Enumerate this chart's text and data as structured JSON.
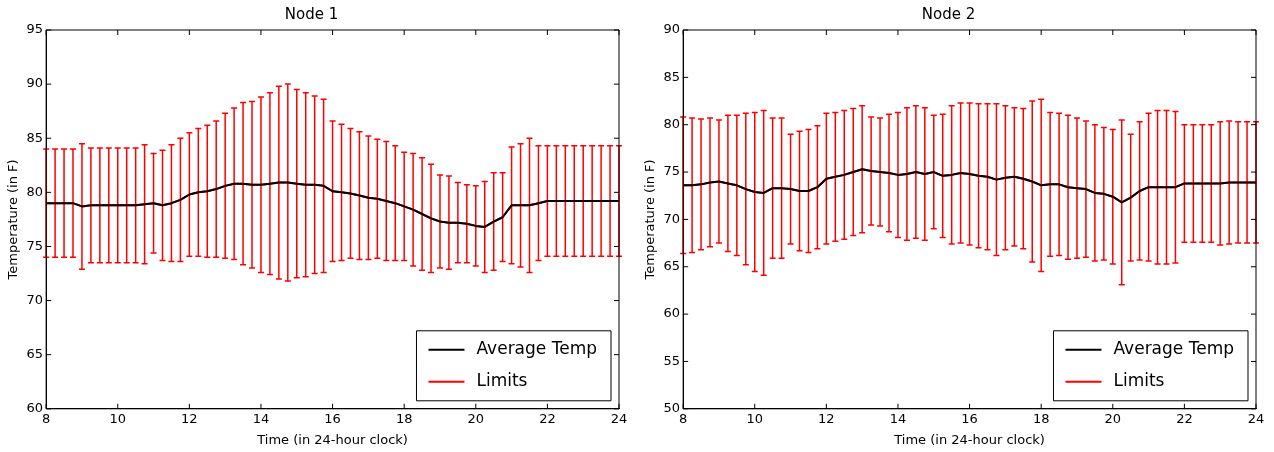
{
  "chart_data": [
    {
      "type": "line",
      "title": "Node 1",
      "xlabel": "Time (in 24-hour clock)",
      "ylabel": "Temperature (in F)",
      "xlim": [
        8,
        24
      ],
      "ylim": [
        60,
        95
      ],
      "xticks": [
        8,
        10,
        12,
        14,
        16,
        18,
        20,
        22,
        24
      ],
      "yticks": [
        60,
        65,
        70,
        75,
        80,
        85,
        90,
        95
      ],
      "legend": "bottom right",
      "x": [
        8,
        8.25,
        8.5,
        8.75,
        9,
        9.25,
        9.5,
        9.75,
        10,
        10.25,
        10.5,
        10.75,
        11,
        11.25,
        11.5,
        11.75,
        12,
        12.25,
        12.5,
        12.75,
        13,
        13.25,
        13.5,
        13.75,
        14,
        14.25,
        14.5,
        14.75,
        15,
        15.25,
        15.5,
        15.75,
        16,
        16.25,
        16.5,
        16.75,
        17,
        17.25,
        17.5,
        17.75,
        18,
        18.25,
        18.5,
        18.75,
        19,
        19.25,
        19.5,
        19.75,
        20,
        20.25,
        20.5,
        20.75,
        21,
        21.25,
        21.5,
        21.75,
        22,
        22.25,
        22.5,
        22.75,
        23,
        23.25,
        23.5,
        23.75,
        24
      ],
      "series": [
        {
          "name": "Average Temp",
          "color": "#000000",
          "values": [
            79,
            79,
            79,
            79,
            78.7,
            78.8,
            78.8,
            78.8,
            78.8,
            78.8,
            78.8,
            78.9,
            79,
            78.8,
            79,
            79.3,
            79.8,
            80,
            80.1,
            80.3,
            80.6,
            80.8,
            80.8,
            80.7,
            80.7,
            80.8,
            80.9,
            80.9,
            80.8,
            80.7,
            80.7,
            80.6,
            80.1,
            80,
            79.9,
            79.7,
            79.5,
            79.4,
            79.2,
            79,
            78.7,
            78.4,
            78,
            77.6,
            77.3,
            77.2,
            77.2,
            77.1,
            76.9,
            76.8,
            77.3,
            77.7,
            78.8,
            78.8,
            78.8,
            79,
            79.2,
            79.2,
            79.2,
            79.2,
            79.2,
            79.2,
            79.2,
            79.2,
            79.2
          ]
        },
        {
          "name": "Limits",
          "color": "#ff0000",
          "values": [
            79,
            79,
            79,
            79,
            78.7,
            78.8,
            78.8,
            78.8,
            78.8,
            78.8,
            78.8,
            78.9,
            79,
            78.8,
            79,
            79.3,
            79.8,
            80,
            80.1,
            80.3,
            80.6,
            80.8,
            80.8,
            80.7,
            80.7,
            80.8,
            80.9,
            80.9,
            80.8,
            80.7,
            80.7,
            80.6,
            80.1,
            80,
            79.9,
            79.7,
            79.5,
            79.4,
            79.2,
            79,
            78.7,
            78.4,
            78,
            77.6,
            77.3,
            77.2,
            77.2,
            77.1,
            76.9,
            76.8,
            77.3,
            77.7,
            78.8,
            78.8,
            78.8,
            79,
            79.2,
            79.2,
            79.2,
            79.2,
            79.2,
            79.2,
            79.2,
            79.2,
            79.2
          ],
          "errors": [
            5,
            5,
            5,
            5,
            5.8,
            5.3,
            5.3,
            5.3,
            5.3,
            5.3,
            5.3,
            5.5,
            4.6,
            5.1,
            5.4,
            5.7,
            5.7,
            5.9,
            6.1,
            6.3,
            6.7,
            7,
            7.5,
            7.7,
            8.1,
            8.4,
            8.9,
            9.1,
            8.7,
            8.5,
            8.2,
            8,
            6.5,
            6.3,
            6,
            5.9,
            5.7,
            5.5,
            5.5,
            5.3,
            5,
            5.2,
            5.2,
            5,
            4.3,
            4.3,
            3.7,
            3.6,
            3.7,
            4.2,
            4.5,
            4.1,
            5.4,
            5.7,
            6.2,
            5.3,
            5.1,
            5.1,
            5.1,
            5.1,
            5.1,
            5.1,
            5.1,
            5.1,
            5.1
          ]
        }
      ]
    },
    {
      "type": "line",
      "title": "Node 2",
      "xlabel": "Time (in 24-hour clock)",
      "ylabel": "Temperature (in F)",
      "xlim": [
        8,
        24
      ],
      "ylim": [
        50,
        90
      ],
      "xticks": [
        8,
        10,
        12,
        14,
        16,
        18,
        20,
        22,
        24
      ],
      "yticks": [
        50,
        55,
        60,
        65,
        70,
        75,
        80,
        85,
        90
      ],
      "legend": "bottom right",
      "x": [
        8,
        8.25,
        8.5,
        8.75,
        9,
        9.25,
        9.5,
        9.75,
        10,
        10.25,
        10.5,
        10.75,
        11,
        11.25,
        11.5,
        11.75,
        12,
        12.25,
        12.5,
        12.75,
        13,
        13.25,
        13.5,
        13.75,
        14,
        14.25,
        14.5,
        14.75,
        15,
        15.25,
        15.5,
        15.75,
        16,
        16.25,
        16.5,
        16.75,
        17,
        17.25,
        17.5,
        17.75,
        18,
        18.25,
        18.5,
        18.75,
        19,
        19.25,
        19.5,
        19.75,
        20,
        20.25,
        20.5,
        20.75,
        21,
        21.25,
        21.5,
        21.75,
        22,
        22.25,
        22.5,
        22.75,
        23,
        23.25,
        23.5,
        23.75,
        24
      ],
      "series": [
        {
          "name": "Average Temp",
          "color": "#000000",
          "values": [
            73.6,
            73.6,
            73.7,
            73.9,
            74,
            73.8,
            73.6,
            73.2,
            72.9,
            72.8,
            73.3,
            73.3,
            73.2,
            73,
            73,
            73.4,
            74.3,
            74.5,
            74.7,
            75,
            75.3,
            75.1,
            75,
            74.9,
            74.7,
            74.8,
            75,
            74.8,
            75,
            74.6,
            74.7,
            74.9,
            74.8,
            74.6,
            74.5,
            74.2,
            74.4,
            74.5,
            74.3,
            74,
            73.6,
            73.7,
            73.7,
            73.4,
            73.3,
            73.2,
            72.8,
            72.7,
            72.4,
            71.8,
            72.3,
            73,
            73.4,
            73.4,
            73.4,
            73.4,
            73.8,
            73.8,
            73.8,
            73.8,
            73.8,
            73.9,
            73.9,
            73.9,
            73.9
          ]
        },
        {
          "name": "Limits",
          "color": "#ff0000",
          "values": [
            73.6,
            73.6,
            73.7,
            73.9,
            74,
            73.8,
            73.6,
            73.2,
            72.9,
            72.8,
            73.3,
            73.3,
            73.2,
            73,
            73,
            73.4,
            74.3,
            74.5,
            74.7,
            75,
            75.3,
            75.1,
            75,
            74.9,
            74.7,
            74.8,
            75,
            74.8,
            75,
            74.6,
            74.7,
            74.9,
            74.8,
            74.6,
            74.5,
            74.2,
            74.4,
            74.5,
            74.3,
            74,
            73.6,
            73.7,
            73.7,
            73.4,
            73.3,
            73.2,
            72.8,
            72.7,
            72.4,
            71.8,
            72.3,
            73,
            73.4,
            73.4,
            73.4,
            73.4,
            73.8,
            73.8,
            73.8,
            73.8,
            73.8,
            73.9,
            73.9,
            73.9,
            73.9
          ],
          "errors": [
            7.2,
            7.1,
            6.9,
            6.8,
            6.5,
            7.2,
            7.4,
            8,
            8.4,
            8.7,
            7.4,
            7.4,
            5.8,
            6.3,
            6.5,
            6.5,
            6.9,
            6.8,
            6.8,
            6.7,
            6.7,
            5.7,
            5.7,
            6.2,
            6.6,
            7,
            7,
            7,
            6,
            6.5,
            7.3,
            7.4,
            7.5,
            7.6,
            7.7,
            8,
            7.6,
            7.3,
            7.4,
            8.5,
            9.1,
            7.6,
            7.5,
            7.6,
            7.4,
            7.2,
            7.2,
            7,
            7.1,
            8.7,
            6.7,
            7.3,
            7.8,
            8.1,
            8.1,
            8,
            6.2,
            6.2,
            6.2,
            6.2,
            6.5,
            6.5,
            6.4,
            6.4,
            6.4
          ]
        }
      ]
    }
  ]
}
